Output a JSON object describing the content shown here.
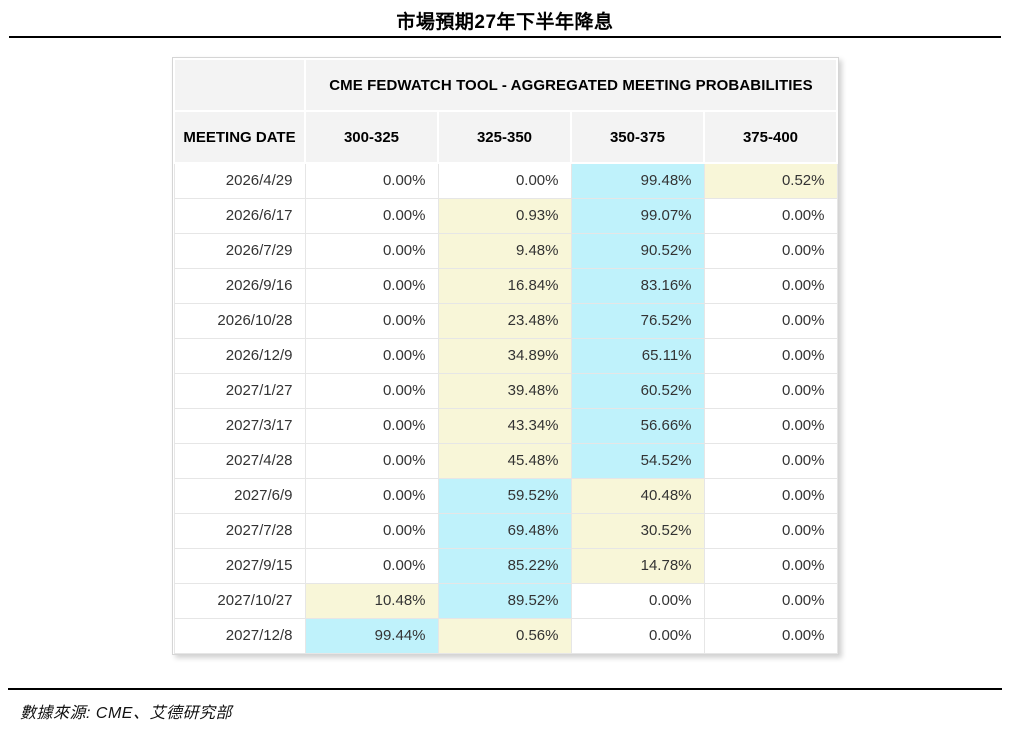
{
  "title": "市場預期27年下半年降息",
  "source": "數據來源: CME、艾德研究部",
  "colors": {
    "highlight_cyan": "#bff2fb",
    "highlight_yellow": "#f8f6d8",
    "header_bg": "#f3f3f3",
    "rule_black": "#000000"
  },
  "chart_data": {
    "type": "table",
    "title": "市場預期27年下半年降息",
    "header": "CME FEDWATCH TOOL - AGGREGATED MEETING PROBABILITIES",
    "columns": [
      "MEETING DATE",
      "300-325",
      "325-350",
      "350-375",
      "375-400"
    ],
    "rows": [
      {
        "date": "2026/4/29",
        "values": [
          "0.00%",
          "0.00%",
          "99.48%",
          "0.52%"
        ],
        "highlights": [
          "none",
          "none",
          "cyan",
          "yellow"
        ]
      },
      {
        "date": "2026/6/17",
        "values": [
          "0.00%",
          "0.93%",
          "99.07%",
          "0.00%"
        ],
        "highlights": [
          "none",
          "yellow",
          "cyan",
          "none"
        ]
      },
      {
        "date": "2026/7/29",
        "values": [
          "0.00%",
          "9.48%",
          "90.52%",
          "0.00%"
        ],
        "highlights": [
          "none",
          "yellow",
          "cyan",
          "none"
        ]
      },
      {
        "date": "2026/9/16",
        "values": [
          "0.00%",
          "16.84%",
          "83.16%",
          "0.00%"
        ],
        "highlights": [
          "none",
          "yellow",
          "cyan",
          "none"
        ]
      },
      {
        "date": "2026/10/28",
        "values": [
          "0.00%",
          "23.48%",
          "76.52%",
          "0.00%"
        ],
        "highlights": [
          "none",
          "yellow",
          "cyan",
          "none"
        ]
      },
      {
        "date": "2026/12/9",
        "values": [
          "0.00%",
          "34.89%",
          "65.11%",
          "0.00%"
        ],
        "highlights": [
          "none",
          "yellow",
          "cyan",
          "none"
        ]
      },
      {
        "date": "2027/1/27",
        "values": [
          "0.00%",
          "39.48%",
          "60.52%",
          "0.00%"
        ],
        "highlights": [
          "none",
          "yellow",
          "cyan",
          "none"
        ]
      },
      {
        "date": "2027/3/17",
        "values": [
          "0.00%",
          "43.34%",
          "56.66%",
          "0.00%"
        ],
        "highlights": [
          "none",
          "yellow",
          "cyan",
          "none"
        ]
      },
      {
        "date": "2027/4/28",
        "values": [
          "0.00%",
          "45.48%",
          "54.52%",
          "0.00%"
        ],
        "highlights": [
          "none",
          "yellow",
          "cyan",
          "none"
        ]
      },
      {
        "date": "2027/6/9",
        "values": [
          "0.00%",
          "59.52%",
          "40.48%",
          "0.00%"
        ],
        "highlights": [
          "none",
          "cyan",
          "yellow",
          "none"
        ]
      },
      {
        "date": "2027/7/28",
        "values": [
          "0.00%",
          "69.48%",
          "30.52%",
          "0.00%"
        ],
        "highlights": [
          "none",
          "cyan",
          "yellow",
          "none"
        ]
      },
      {
        "date": "2027/9/15",
        "values": [
          "0.00%",
          "85.22%",
          "14.78%",
          "0.00%"
        ],
        "highlights": [
          "none",
          "cyan",
          "yellow",
          "none"
        ]
      },
      {
        "date": "2027/10/27",
        "values": [
          "10.48%",
          "89.52%",
          "0.00%",
          "0.00%"
        ],
        "highlights": [
          "yellow",
          "cyan",
          "none",
          "none"
        ]
      },
      {
        "date": "2027/12/8",
        "values": [
          "99.44%",
          "0.56%",
          "0.00%",
          "0.00%"
        ],
        "highlights": [
          "cyan",
          "yellow",
          "none",
          "none"
        ]
      }
    ],
    "source": "數據來源: CME、艾德研究部",
    "legend": "cyan = highest-probability rate band per meeting, yellow = secondary band",
    "layout": {
      "grid": "light-gray cell borders",
      "header_position": "top, spanning 4 value columns"
    }
  }
}
